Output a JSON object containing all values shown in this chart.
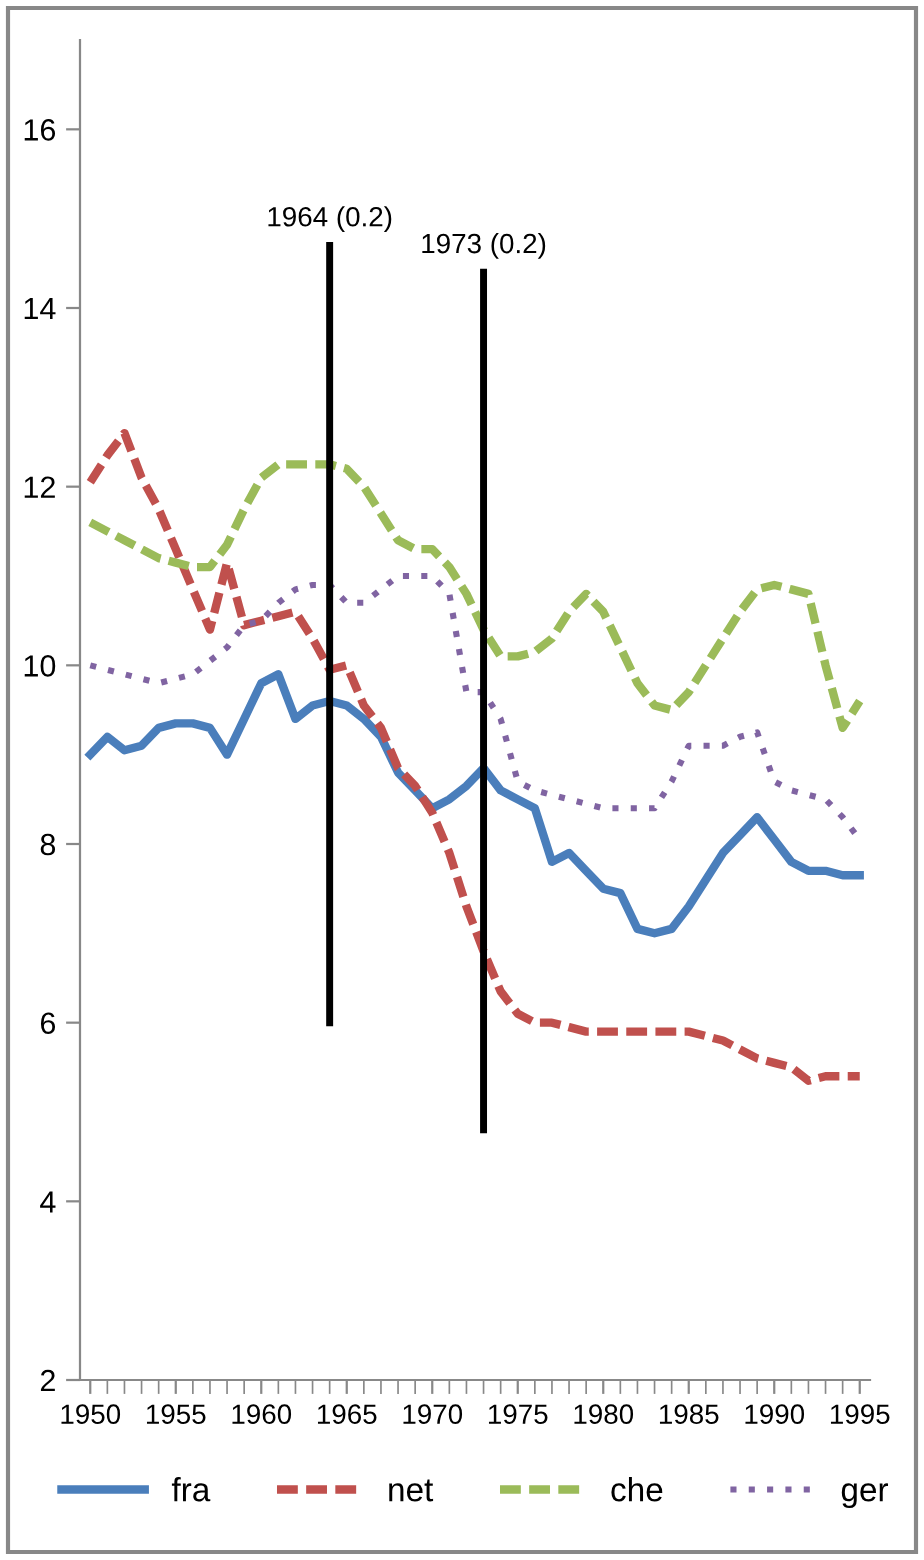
{
  "chart_data": {
    "type": "line",
    "x": [
      1950,
      1951,
      1952,
      1953,
      1954,
      1955,
      1956,
      1957,
      1958,
      1959,
      1960,
      1961,
      1962,
      1963,
      1964,
      1965,
      1966,
      1967,
      1968,
      1969,
      1970,
      1971,
      1972,
      1973,
      1974,
      1975,
      1976,
      1977,
      1978,
      1979,
      1980,
      1981,
      1982,
      1983,
      1984,
      1985,
      1986,
      1987,
      1988,
      1989,
      1990,
      1991,
      1992,
      1993,
      1994,
      1995
    ],
    "series": [
      {
        "name": "fra",
        "color": "#4a7ebb",
        "line_style": "solid",
        "values": [
          9.0,
          9.2,
          9.05,
          9.1,
          9.3,
          9.35,
          9.35,
          9.3,
          9.0,
          9.4,
          9.8,
          9.9,
          9.4,
          9.55,
          9.6,
          9.55,
          9.4,
          9.2,
          8.8,
          8.6,
          8.4,
          8.5,
          8.65,
          8.85,
          8.6,
          8.5,
          8.4,
          7.8,
          7.9,
          7.7,
          7.5,
          7.45,
          7.05,
          7.0,
          7.05,
          7.3,
          7.6,
          7.9,
          8.1,
          8.3,
          8.05,
          7.8,
          7.7,
          7.7,
          7.65,
          7.65
        ]
      },
      {
        "name": "net",
        "color": "#c0504d",
        "line_style": "dashed",
        "values": [
          12.05,
          12.35,
          12.6,
          12.1,
          11.75,
          11.3,
          10.85,
          10.4,
          11.15,
          10.45,
          10.5,
          10.55,
          10.6,
          10.3,
          9.95,
          10.0,
          9.55,
          9.3,
          8.85,
          8.65,
          8.35,
          7.9,
          7.3,
          6.8,
          6.35,
          6.1,
          6.0,
          6.0,
          5.95,
          5.9,
          5.9,
          5.9,
          5.9,
          5.9,
          5.9,
          5.9,
          5.85,
          5.8,
          5.7,
          5.6,
          5.55,
          5.5,
          5.35,
          5.4,
          5.4,
          5.4
        ]
      },
      {
        "name": "che",
        "color": "#9bbb59",
        "line_style": "dashed",
        "values": [
          11.6,
          11.5,
          11.4,
          11.3,
          11.2,
          11.15,
          11.1,
          11.1,
          11.35,
          11.75,
          12.1,
          12.25,
          12.25,
          12.25,
          12.25,
          12.2,
          12.0,
          11.7,
          11.4,
          11.3,
          11.3,
          11.1,
          10.8,
          10.4,
          10.1,
          10.1,
          10.15,
          10.3,
          10.6,
          10.8,
          10.6,
          10.2,
          9.8,
          9.55,
          9.5,
          9.7,
          10.0,
          10.3,
          10.6,
          10.85,
          10.9,
          10.85,
          10.8,
          10.0,
          9.3,
          9.6
        ]
      },
      {
        "name": "ger",
        "color": "#8064a2",
        "line_style": "dotted",
        "values": [
          10.0,
          9.95,
          9.9,
          9.85,
          9.8,
          9.85,
          9.9,
          10.05,
          10.2,
          10.45,
          10.5,
          10.7,
          10.85,
          10.9,
          10.9,
          10.7,
          10.7,
          10.85,
          11.0,
          11.0,
          11.0,
          10.8,
          9.7,
          9.7,
          9.4,
          8.7,
          8.6,
          8.55,
          8.5,
          8.45,
          8.4,
          8.4,
          8.4,
          8.4,
          8.7,
          9.1,
          9.1,
          9.1,
          9.2,
          9.25,
          8.7,
          8.6,
          8.55,
          8.5,
          8.3,
          8.05
        ]
      }
    ],
    "xlim": [
      1949.4,
      1995.6
    ],
    "xticks": [
      1950,
      1955,
      1960,
      1965,
      1970,
      1975,
      1980,
      1985,
      1990,
      1995
    ],
    "ylim": [
      2,
      17
    ],
    "yticks": [
      2,
      4,
      6,
      8,
      10,
      12,
      14,
      16
    ],
    "ref_lines": [
      {
        "axis": "x",
        "value": 1964,
        "label": "1964 (0.2)",
        "color": "#000000"
      },
      {
        "axis": "x",
        "value": 1973,
        "label": "1973 (0.2)",
        "color": "#000000"
      }
    ],
    "grid": false,
    "legend": "bottom",
    "marker": "none"
  }
}
